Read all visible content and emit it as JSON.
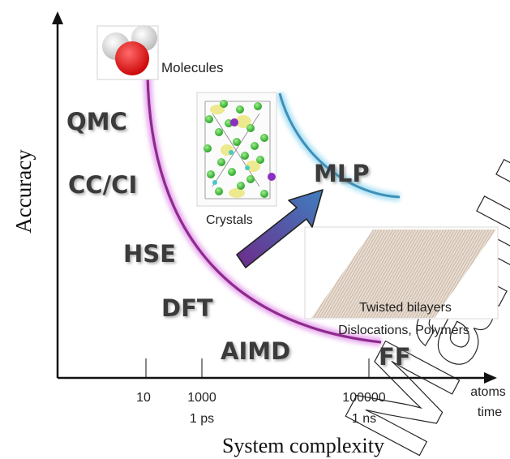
{
  "axes": {
    "y_label": "Accuracy",
    "x_label": "System complexity",
    "x_ticks": [
      {
        "atoms": "10",
        "time": ""
      },
      {
        "atoms": "1000",
        "time": "1 ps"
      },
      {
        "atoms": "100000",
        "time": "1 ns"
      }
    ],
    "x_unit_atoms": "atoms",
    "x_unit_time": "time"
  },
  "methods": {
    "qmc": "QMC",
    "cc_ci": "CC/CI",
    "hse": "HSE",
    "dft": "DFT",
    "aimd": "AIMD",
    "ff": "FF",
    "mlp": "MLP"
  },
  "systems": {
    "molecules": "Molecules",
    "crystals": "Crystals",
    "twisted": "Twisted bilayers",
    "dislocations": "Dislocations,  Polymers"
  },
  "watermark": "Manuscript",
  "colors": {
    "curve_purple": "#8e2a8e",
    "curve_blue": "#3e90b8",
    "arrow_start": "#6e2a8a",
    "arrow_end": "#3f7fbf",
    "label_text": "#3a3a3a",
    "axis": "#111111"
  }
}
